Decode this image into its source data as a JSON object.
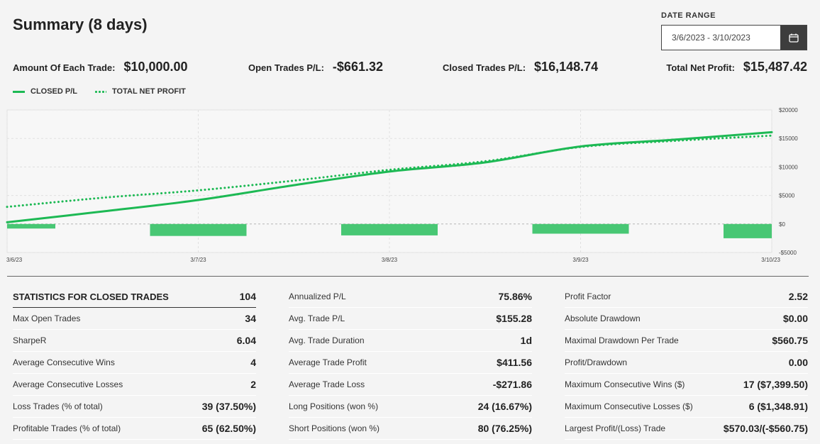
{
  "header": {
    "title": "Summary (8 days)",
    "date_range_label": "DATE RANGE",
    "date_range_value": "3/6/2023 - 3/10/2023"
  },
  "kpis": [
    {
      "label": "Amount Of Each Trade:",
      "value": "$10,000.00"
    },
    {
      "label": "Open Trades P/L:",
      "value": "-$661.32"
    },
    {
      "label": "Closed Trades P/L:",
      "value": "$16,148.74"
    },
    {
      "label": "Total Net Profit:",
      "value": "$15,487.42"
    }
  ],
  "legend": {
    "closed": "CLOSED P/L",
    "total": "TOTAL NET PROFIT"
  },
  "chart_data": {
    "type": "line",
    "series": [
      {
        "name": "CLOSED P/L",
        "style": "solid",
        "color": "#1db954",
        "points": [
          [
            0,
            300
          ],
          [
            0.5,
            2200
          ],
          [
            1,
            4200
          ],
          [
            1.5,
            6800
          ],
          [
            2,
            9200
          ],
          [
            2.5,
            10800
          ],
          [
            3,
            13600
          ],
          [
            3.5,
            14800
          ],
          [
            4,
            16100
          ]
        ]
      },
      {
        "name": "TOTAL NET PROFIT",
        "style": "dotted",
        "color": "#1db954",
        "points": [
          [
            0,
            3000
          ],
          [
            0.5,
            4600
          ],
          [
            1,
            5900
          ],
          [
            1.5,
            7600
          ],
          [
            2,
            9500
          ],
          [
            2.5,
            11000
          ],
          [
            3,
            13500
          ],
          [
            3.5,
            14600
          ],
          [
            4,
            15500
          ]
        ]
      }
    ],
    "bars": {
      "color": "#48c774",
      "values": [
        {
          "x": 0,
          "value": -800
        },
        {
          "x": 1,
          "value": -2100
        },
        {
          "x": 2,
          "value": -2000
        },
        {
          "x": 3,
          "value": -1700
        },
        {
          "x": 4,
          "value": -2500
        }
      ]
    },
    "x_tick_labels": [
      "3/6/23",
      "3/7/23",
      "3/8/23",
      "3/9/23",
      "3/10/23"
    ],
    "y_ticks": [
      20000,
      15000,
      10000,
      5000,
      0,
      -5000
    ],
    "y_tick_labels": [
      "$20000",
      "$15000",
      "$10000",
      "$5000",
      "$0",
      "-$5000"
    ],
    "ylim": [
      -5000,
      20000
    ],
    "grid": true
  },
  "stats": {
    "columns": [
      [
        {
          "k": "STATISTICS FOR CLOSED TRADES",
          "v": "104",
          "head": true
        },
        {
          "k": "Max Open Trades",
          "v": "34"
        },
        {
          "k": "SharpeR",
          "v": "6.04"
        },
        {
          "k": "Average Consecutive Wins",
          "v": "4"
        },
        {
          "k": "Average Consecutive Losses",
          "v": "2"
        },
        {
          "k": "Loss Trades (% of total)",
          "v": "39 (37.50%)"
        },
        {
          "k": "Profitable Trades (% of total)",
          "v": "65 (62.50%)"
        }
      ],
      [
        {
          "k": "Annualized P/L",
          "v": "75.86%"
        },
        {
          "k": "Avg. Trade P/L",
          "v": "$155.28"
        },
        {
          "k": "Avg. Trade Duration",
          "v": "1d"
        },
        {
          "k": "Average Trade Profit",
          "v": "$411.56"
        },
        {
          "k": "Average Trade Loss",
          "v": "-$271.86"
        },
        {
          "k": "Long Positions (won %)",
          "v": "24 (16.67%)"
        },
        {
          "k": "Short Positions (won %)",
          "v": "80 (76.25%)"
        }
      ],
      [
        {
          "k": "Profit Factor",
          "v": "2.52"
        },
        {
          "k": "Absolute Drawdown",
          "v": "$0.00"
        },
        {
          "k": "Maximal Drawdown Per Trade",
          "v": "$560.75"
        },
        {
          "k": "Profit/Drawdown",
          "v": "0.00"
        },
        {
          "k": "Maximum Consecutive Wins ($)",
          "v": "17 ($7,399.50)"
        },
        {
          "k": "Maximum Consecutive Losses ($)",
          "v": "6 ($1,348.91)"
        },
        {
          "k": "Largest Profit/(Loss) Trade",
          "v": "$570.03/(-$560.75)"
        }
      ]
    ]
  }
}
